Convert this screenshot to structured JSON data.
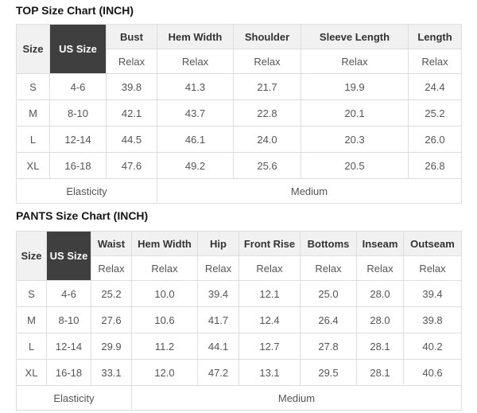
{
  "colors": {
    "dark_header_cell_bg": "#3f3f3f",
    "dark_header_cell_text": "#ffffff",
    "header_bg": "#f1f1f1",
    "header_text": "#333333",
    "cell_text": "#555555",
    "border": "#dddddd",
    "title_text": "#151515"
  },
  "top_chart": {
    "title": "TOP Size Chart (INCH)",
    "corner_label": "Size",
    "us_size_label": "US Size",
    "fit_label": "Relax",
    "columns": [
      "Bust",
      "Hem Width",
      "Shoulder",
      "Sleeve Length",
      "Length"
    ],
    "rows": [
      {
        "size": "S",
        "us_size": "4-6",
        "values": [
          "39.8",
          "41.3",
          "21.7",
          "19.9",
          "24.4"
        ]
      },
      {
        "size": "M",
        "us_size": "8-10",
        "values": [
          "42.1",
          "43.7",
          "22.8",
          "20.1",
          "25.2"
        ]
      },
      {
        "size": "L",
        "us_size": "12-14",
        "values": [
          "44.5",
          "46.1",
          "24.0",
          "20.3",
          "26.0"
        ]
      },
      {
        "size": "XL",
        "us_size": "16-18",
        "values": [
          "47.6",
          "49.2",
          "25.6",
          "20.5",
          "26.8"
        ]
      }
    ],
    "footer": {
      "label": "Elasticity",
      "value": "Medium"
    }
  },
  "pants_chart": {
    "title": "PANTS Size Chart (INCH)",
    "corner_label": "Size",
    "us_size_label": "US Size",
    "fit_label": "Relax",
    "columns": [
      "Waist",
      "Hem Width",
      "Hip",
      "Front Rise",
      "Bottoms",
      "Inseam",
      "Outseam"
    ],
    "rows": [
      {
        "size": "S",
        "us_size": "4-6",
        "values": [
          "25.2",
          "10.0",
          "39.4",
          "12.1",
          "25.0",
          "28.0",
          "39.4"
        ]
      },
      {
        "size": "M",
        "us_size": "8-10",
        "values": [
          "27.6",
          "10.6",
          "41.7",
          "12.4",
          "26.4",
          "28.0",
          "39.8"
        ]
      },
      {
        "size": "L",
        "us_size": "12-14",
        "values": [
          "29.9",
          "11.2",
          "44.1",
          "12.7",
          "27.8",
          "28.1",
          "40.2"
        ]
      },
      {
        "size": "XL",
        "us_size": "16-18",
        "values": [
          "33.1",
          "12.0",
          "47.2",
          "13.1",
          "29.5",
          "28.1",
          "40.6"
        ]
      }
    ],
    "footer": {
      "label": "Elasticity",
      "value": "Medium"
    }
  }
}
